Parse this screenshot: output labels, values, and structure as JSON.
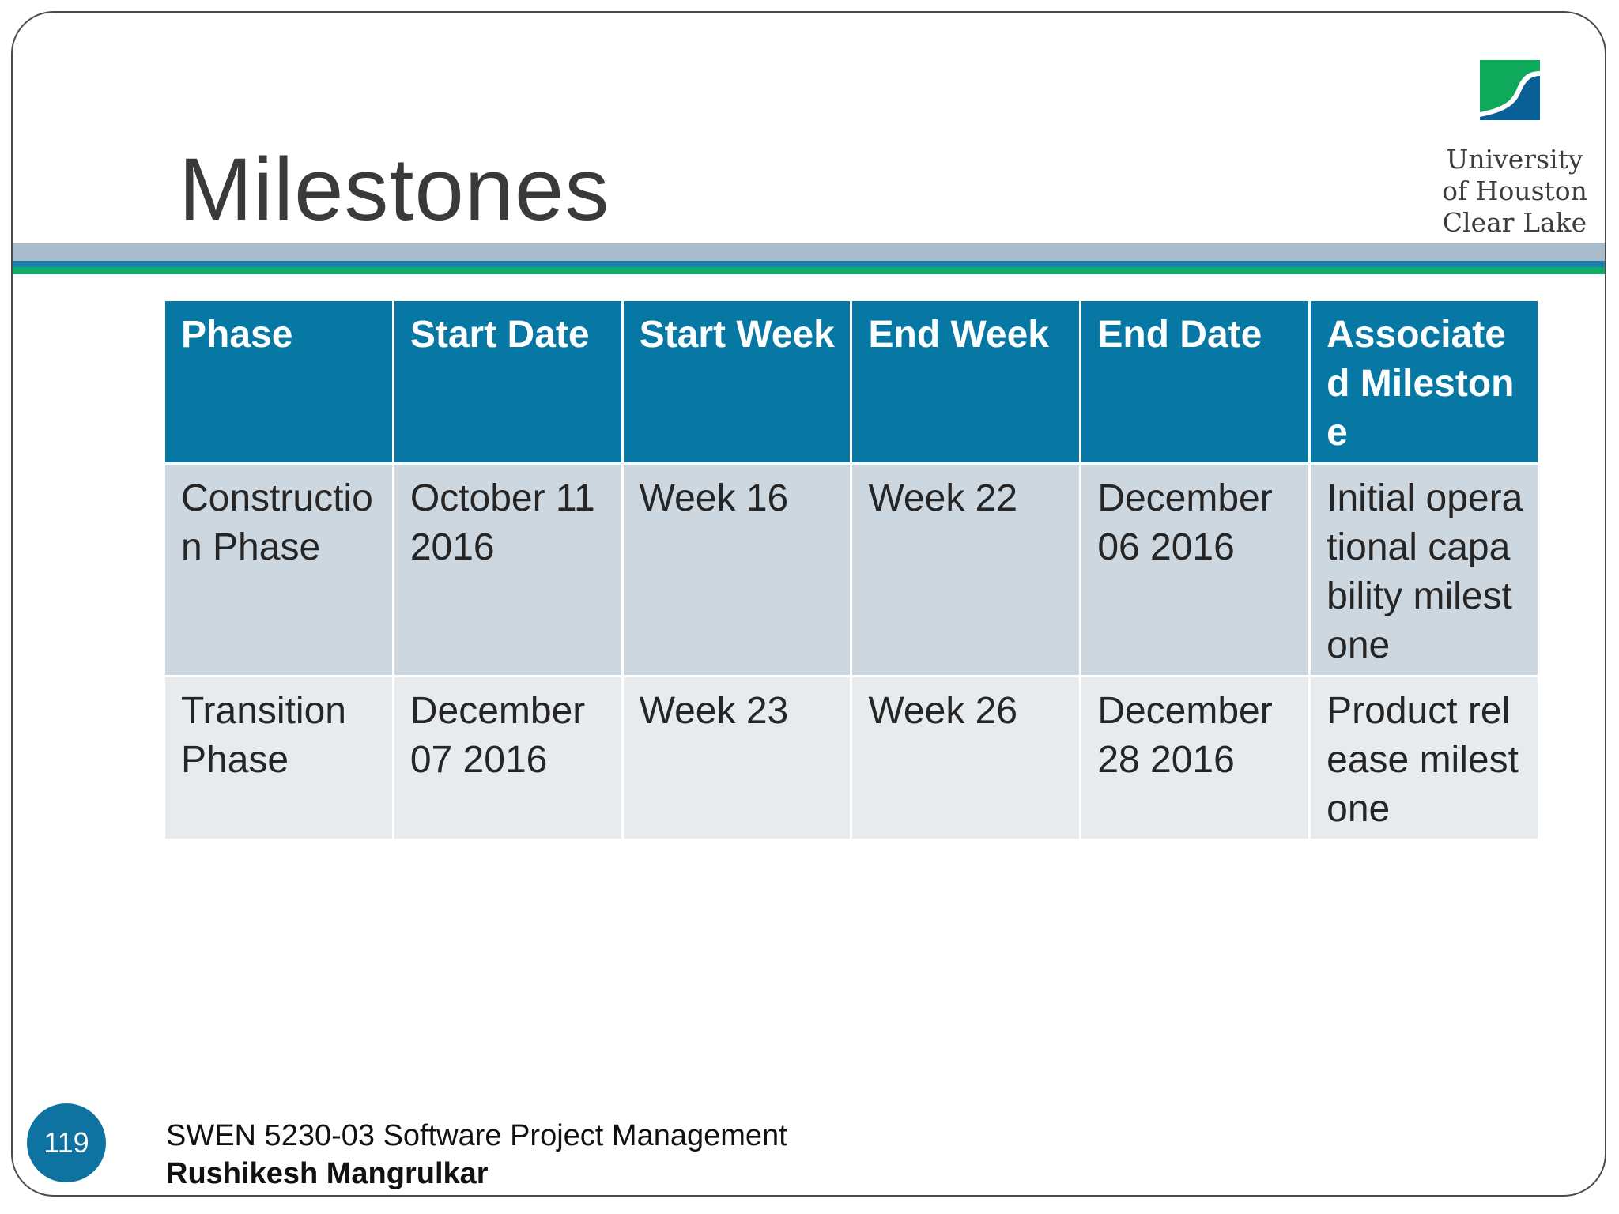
{
  "slide": {
    "title": "Milestones",
    "page_number": "119"
  },
  "logo": {
    "line1": "University",
    "line2": "of Houston",
    "line3": "Clear Lake",
    "colors": {
      "green": "#0fa95c",
      "blue": "#0a5f96"
    }
  },
  "table": {
    "headers": [
      "Phase",
      "Start Date",
      "Start Week",
      "End Week",
      "End Date",
      "Associated Milestone"
    ],
    "rows": [
      [
        "Construction Phase",
        "October 11 2016",
        "Week 16",
        "Week 22",
        "December 06 2016",
        "Initial operational capability milestone"
      ],
      [
        "Transition Phase",
        "December 07 2016",
        "Week 23",
        "Week 26",
        "December 28 2016",
        "Product release milestone"
      ]
    ]
  },
  "footer": {
    "course": "SWEN 5230-03 Software Project Management",
    "author": "Rushikesh Mangrulkar"
  },
  "colors": {
    "header_bg": "#0778a4",
    "row_a_bg": "#cdd7e0",
    "row_b_bg": "#e8ebee",
    "rule_gray": "#a9bccb",
    "rule_blue": "#1f7faa",
    "rule_green": "#0fae64",
    "badge": "#0e73a0"
  }
}
